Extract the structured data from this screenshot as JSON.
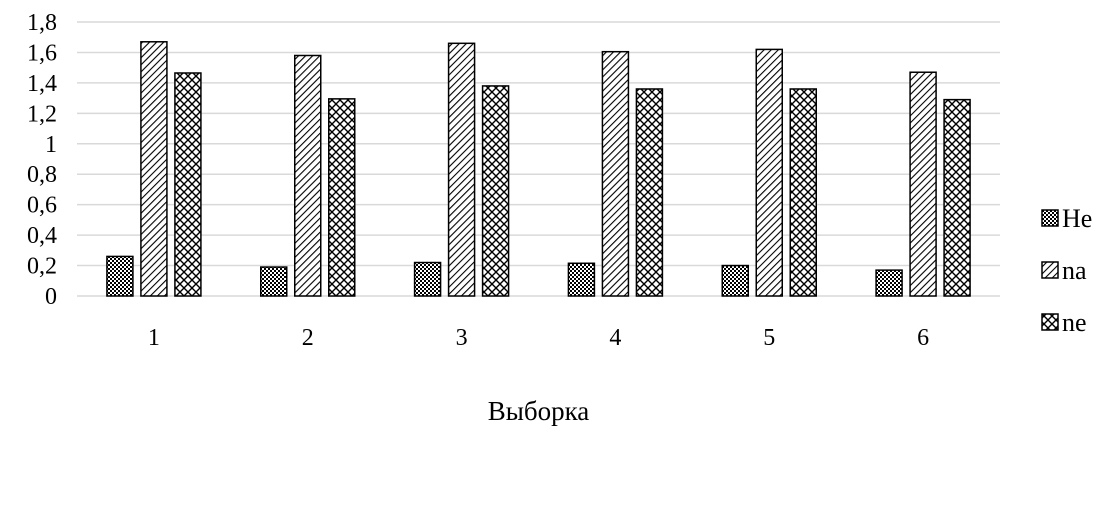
{
  "chart_data": {
    "type": "bar",
    "title": "",
    "xlabel": "Выборка",
    "ylabel": "",
    "categories": [
      "1",
      "2",
      "3",
      "4",
      "5",
      "6"
    ],
    "series": [
      {
        "name": "He",
        "values": [
          0.26,
          0.19,
          0.22,
          0.215,
          0.2,
          0.17
        ],
        "pattern": "dots"
      },
      {
        "name": "na",
        "values": [
          1.67,
          1.58,
          1.66,
          1.605,
          1.62,
          1.47
        ],
        "pattern": "diagonal"
      },
      {
        "name": "ne",
        "values": [
          1.465,
          1.295,
          1.38,
          1.36,
          1.36,
          1.29
        ],
        "pattern": "wave"
      }
    ],
    "ylim": [
      0,
      1.8
    ],
    "yticks": [
      "0",
      "0,2",
      "0,4",
      "0,6",
      "0,8",
      "1",
      "1,2",
      "1,4",
      "1,6",
      "1,8"
    ],
    "grid": true,
    "legend_position": "right"
  }
}
